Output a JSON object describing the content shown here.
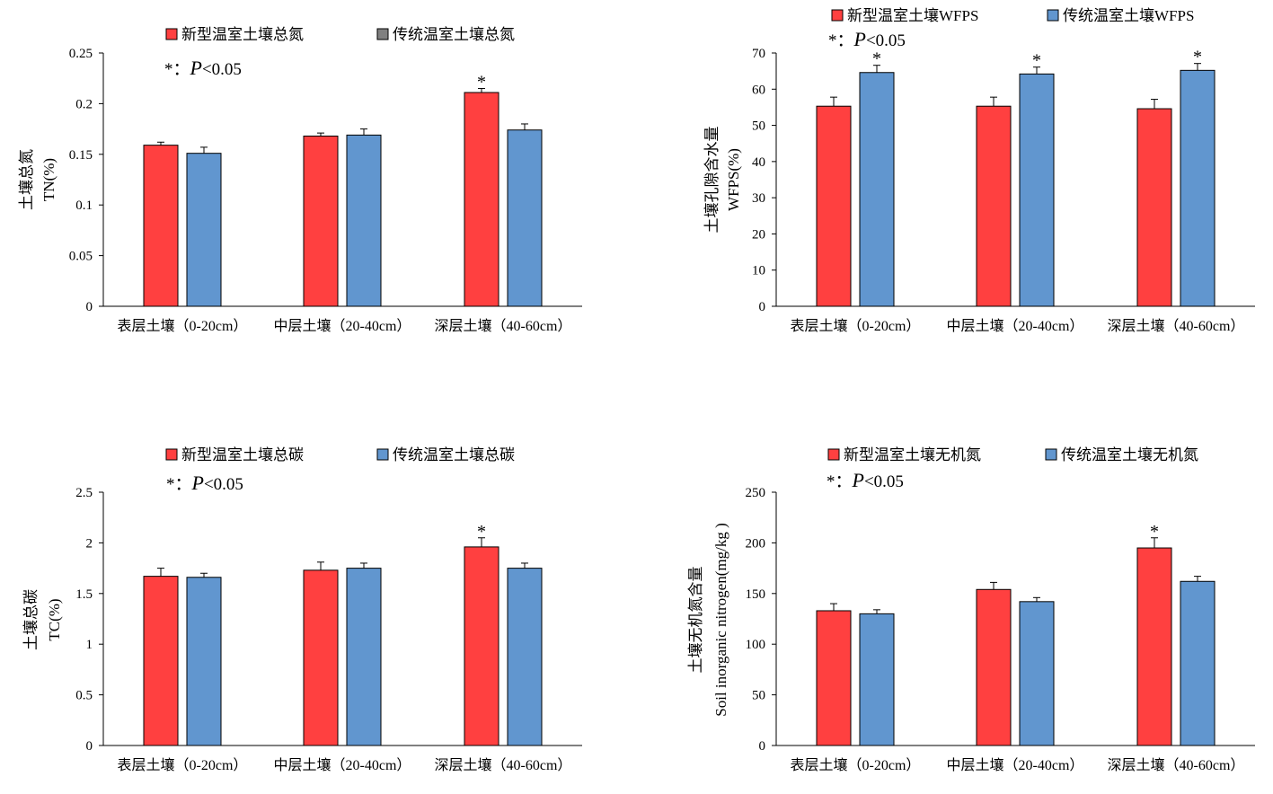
{
  "chart_data": [
    {
      "type": "bar",
      "categories": [
        "表层土壤（0-20cm）",
        "中层土壤（20-40cm）",
        "深层土壤（40-60cm）"
      ],
      "series": [
        {
          "name": "新型温室土壤总氮",
          "values": [
            0.159,
            0.168,
            0.211
          ],
          "errors": [
            0.003,
            0.003,
            0.004
          ],
          "color": "#ff4040",
          "legend_swatch": "#ff4040"
        },
        {
          "name": "传统温室土壤总氮",
          "values": [
            0.151,
            0.169,
            0.174
          ],
          "errors": [
            0.006,
            0.006,
            0.006
          ],
          "color": "#6196cf",
          "legend_swatch": "#808080"
        }
      ],
      "ylabel_lines": [
        "土壤总氮",
        "TN(%)"
      ],
      "ylim": [
        0,
        0.25
      ],
      "yticks": [
        0,
        0.05,
        0.1,
        0.15,
        0.2,
        0.25
      ],
      "ytick_labels": [
        "0",
        "0.05",
        "0.1",
        "0.15",
        "0.2",
        "0.25"
      ],
      "significance": [
        {
          "category": 2,
          "series": 0,
          "mark": "*"
        }
      ],
      "note": {
        "star": "*：",
        "p": "P",
        "rest": "<0.05"
      }
    },
    {
      "type": "bar",
      "categories": [
        "表层土壤（0-20cm）",
        "中层土壤（20-40cm）",
        "深层土壤（40-60cm）"
      ],
      "series": [
        {
          "name": "新型温室土壤WFPS",
          "values": [
            55.3,
            55.3,
            54.6
          ],
          "errors": [
            2.5,
            2.5,
            2.6
          ],
          "color": "#ff4040",
          "legend_swatch": "#ff4040"
        },
        {
          "name": "传统温室土壤WFPS",
          "values": [
            64.6,
            64.2,
            65.2
          ],
          "errors": [
            2.0,
            1.9,
            1.9
          ],
          "color": "#6196cf",
          "legend_swatch": "#6196cf"
        }
      ],
      "ylabel_lines": [
        "土壤孔隙含水量",
        "WFPS(%)"
      ],
      "ylim": [
        0,
        70
      ],
      "yticks": [
        0,
        10,
        20,
        30,
        40,
        50,
        60,
        70
      ],
      "ytick_labels": [
        "0",
        "10",
        "20",
        "30",
        "40",
        "50",
        "60",
        "70"
      ],
      "significance": [
        {
          "category": 0,
          "series": 1,
          "mark": "*"
        },
        {
          "category": 1,
          "series": 1,
          "mark": "*"
        },
        {
          "category": 2,
          "series": 1,
          "mark": "*"
        }
      ],
      "note": {
        "star": "*：",
        "p": "P",
        "rest": "<0.05"
      }
    },
    {
      "type": "bar",
      "categories": [
        "表层土壤（0-20cm）",
        "中层土壤（20-40cm）",
        "深层土壤（40-60cm）"
      ],
      "series": [
        {
          "name": "新型温室土壤总碳",
          "values": [
            1.67,
            1.73,
            1.96
          ],
          "errors": [
            0.08,
            0.08,
            0.09
          ],
          "color": "#ff4040",
          "legend_swatch": "#ff4040"
        },
        {
          "name": "传统温室土壤总碳",
          "values": [
            1.66,
            1.75,
            1.75
          ],
          "errors": [
            0.04,
            0.05,
            0.05
          ],
          "color": "#6196cf",
          "legend_swatch": "#6196cf"
        }
      ],
      "ylabel_lines": [
        "土壤总碳",
        "TC(%)"
      ],
      "ylim": [
        0,
        2.5
      ],
      "yticks": [
        0,
        0.5,
        1,
        1.5,
        2,
        2.5
      ],
      "ytick_labels": [
        "0",
        "0.5",
        "1",
        "1.5",
        "2",
        "2.5"
      ],
      "significance": [
        {
          "category": 2,
          "series": 0,
          "mark": "*"
        }
      ],
      "note": {
        "star": "*：",
        "p": "P",
        "rest": "<0.05"
      }
    },
    {
      "type": "bar",
      "categories": [
        "表层土壤（0-20cm）",
        "中层土壤（20-40cm）",
        "深层土壤（40-60cm）"
      ],
      "series": [
        {
          "name": "新型温室土壤无机氮",
          "values": [
            133,
            154,
            195
          ],
          "errors": [
            7,
            7,
            10
          ],
          "color": "#ff4040",
          "legend_swatch": "#ff4040"
        },
        {
          "name": "传统温室土壤无机氮",
          "values": [
            130,
            142,
            162
          ],
          "errors": [
            4,
            4,
            5
          ],
          "color": "#6196cf",
          "legend_swatch": "#6196cf"
        }
      ],
      "ylabel_lines": [
        "土壤无机氮含量",
        "Soil inorganic nitrogen(mg/kg )"
      ],
      "ylim": [
        0,
        250
      ],
      "yticks": [
        0,
        50,
        100,
        150,
        200,
        250
      ],
      "ytick_labels": [
        "0",
        "50",
        "100",
        "150",
        "200",
        "250"
      ],
      "significance": [
        {
          "category": 2,
          "series": 0,
          "mark": "*"
        }
      ],
      "note": {
        "star": "*：",
        "p": "P",
        "rest": "<0.05"
      }
    }
  ]
}
